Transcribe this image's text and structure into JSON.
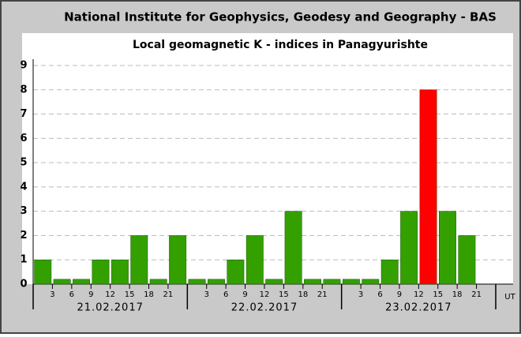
{
  "chart_data": {
    "type": "bar",
    "title": "National Institute for Geophysics, Geodesy and Geography - BAS",
    "subtitle": "Local geomagnetic K - indices in Panagyurishte",
    "x_unit_label": "UT",
    "x": [
      0,
      3,
      6,
      9,
      12,
      15,
      18,
      21,
      24,
      27,
      30,
      33,
      36,
      39,
      42,
      45,
      48,
      51,
      54,
      57,
      60,
      63,
      66,
      69
    ],
    "values": [
      1,
      0.2,
      0.2,
      1,
      1,
      2,
      0.2,
      2,
      0.2,
      0.2,
      1,
      2,
      0.2,
      3,
      0.2,
      0.2,
      0.2,
      0.2,
      1,
      3,
      8,
      3,
      2,
      null
    ],
    "colors": [
      "#33a000",
      "#33a000",
      "#33a000",
      "#33a000",
      "#33a000",
      "#33a000",
      "#33a000",
      "#33a000",
      "#33a000",
      "#33a000",
      "#33a000",
      "#33a000",
      "#33a000",
      "#33a000",
      "#33a000",
      "#33a000",
      "#33a000",
      "#33a000",
      "#33a000",
      "#33a000",
      "#ff0000",
      "#33a000",
      "#33a000",
      "#33a000"
    ],
    "bar_width": 3,
    "xlim": [
      0,
      72
    ],
    "xticks": [
      3,
      6,
      9,
      12,
      15,
      18,
      21,
      {
        "value": 27,
        "label": "3"
      },
      {
        "value": 30,
        "label": "6"
      },
      {
        "value": 33,
        "label": "9"
      },
      {
        "value": 36,
        "label": "12"
      },
      {
        "value": 39,
        "label": "15"
      },
      {
        "value": 42,
        "label": "18"
      },
      {
        "value": 45,
        "label": "21"
      },
      {
        "value": 51,
        "label": "3"
      },
      {
        "value": 54,
        "label": "6"
      },
      {
        "value": 57,
        "label": "9"
      },
      {
        "value": 60,
        "label": "12"
      },
      {
        "value": 63,
        "label": "15"
      },
      {
        "value": 66,
        "label": "18"
      },
      {
        "value": 69,
        "label": "21"
      }
    ],
    "xmajorticks": [
      0,
      24,
      48,
      72
    ],
    "groups": [
      "21.02.2017",
      "22.02.2017",
      "23.02.2017"
    ],
    "ylim": [
      0,
      9
    ],
    "yticks": [
      0,
      1,
      2,
      3,
      4,
      5,
      6,
      7,
      8,
      9
    ],
    "grid": true
  }
}
